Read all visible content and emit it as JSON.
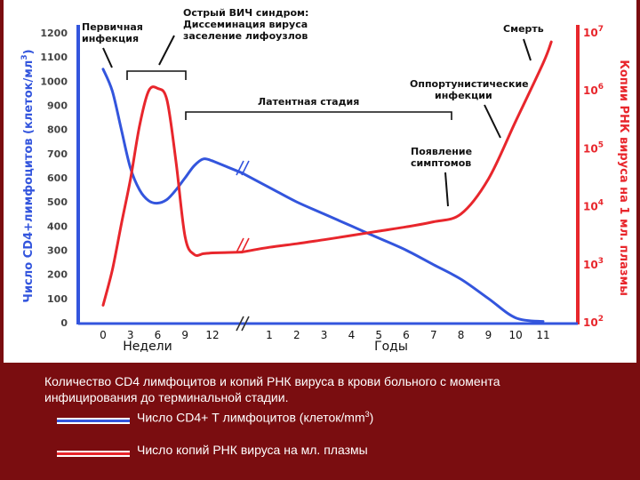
{
  "colors": {
    "cd4": "#3355dd",
    "rna": "#e8262c",
    "background": "#7a0d10",
    "annotation": "#111111"
  },
  "chart_data": {
    "type": "line",
    "left_axis": {
      "title": "Число CD4+лимфоцитов (клеток/мл",
      "title_sup": "3",
      "title_close": ")",
      "ticks": [
        0,
        100,
        200,
        300,
        400,
        500,
        600,
        700,
        800,
        900,
        1000,
        1100,
        1200
      ],
      "range": [
        0,
        1200
      ]
    },
    "right_axis": {
      "title": "Копии РНК вируса на 1 мл. плазмы",
      "scale": "log",
      "range": [
        100,
        10000000
      ],
      "ticks": [
        {
          "value": 100,
          "base": "10",
          "exp": "2"
        },
        {
          "value": 1000,
          "base": "10",
          "exp": "3"
        },
        {
          "value": 10000,
          "base": "10",
          "exp": "4"
        },
        {
          "value": 100000,
          "base": "10",
          "exp": "5"
        },
        {
          "value": 1000000,
          "base": "10",
          "exp": "6"
        },
        {
          "value": 10000000,
          "base": "10",
          "exp": "7"
        }
      ]
    },
    "x_axis": {
      "weeks_label": "Недели",
      "years_label": "Годы",
      "weeks_ticks": [
        0,
        3,
        6,
        9,
        12
      ],
      "years_ticks": [
        1,
        2,
        3,
        4,
        5,
        6,
        7,
        8,
        9,
        10,
        11
      ]
    },
    "series": [
      {
        "key": "cd4",
        "axis": "left",
        "weeks": [
          [
            0,
            1050
          ],
          [
            1,
            960
          ],
          [
            2,
            800
          ],
          [
            3,
            640
          ],
          [
            4,
            550
          ],
          [
            5,
            505
          ],
          [
            6,
            495
          ],
          [
            7,
            510
          ],
          [
            8,
            550
          ],
          [
            9,
            600
          ],
          [
            10,
            650
          ],
          [
            11,
            678
          ],
          [
            12,
            670
          ]
        ],
        "years": [
          [
            0,
            620
          ],
          [
            1,
            560
          ],
          [
            2,
            500
          ],
          [
            3,
            450
          ],
          [
            4,
            400
          ],
          [
            5,
            350
          ],
          [
            6,
            300
          ],
          [
            7,
            240
          ],
          [
            8,
            180
          ],
          [
            9,
            100
          ],
          [
            10,
            20
          ],
          [
            11,
            5
          ]
        ]
      },
      {
        "key": "rna",
        "axis": "right",
        "weeks": [
          [
            0,
            200
          ],
          [
            1,
            800
          ],
          [
            2,
            5000
          ],
          [
            3,
            30000
          ],
          [
            4,
            250000
          ],
          [
            5,
            1000000
          ],
          [
            6,
            1100000
          ],
          [
            7,
            700000
          ],
          [
            8,
            60000
          ],
          [
            9,
            3000
          ],
          [
            10,
            1500
          ],
          [
            11,
            1550
          ],
          [
            12,
            1600
          ]
        ],
        "years": [
          [
            0,
            1650
          ],
          [
            1,
            2000
          ],
          [
            2,
            2300
          ],
          [
            3,
            2700
          ],
          [
            4,
            3200
          ],
          [
            5,
            3800
          ],
          [
            6,
            4500
          ],
          [
            7,
            5500
          ],
          [
            8,
            7500
          ],
          [
            9,
            30000
          ],
          [
            10,
            300000
          ],
          [
            11,
            3000000
          ],
          [
            11.3,
            7000000
          ]
        ]
      }
    ],
    "annotations": [
      {
        "key": "primary",
        "lines": [
          "Первичная",
          "инфекция"
        ]
      },
      {
        "key": "acute",
        "lines": [
          "Острый ВИЧ синдром:",
          "Диссеминация вируса",
          "заселение лифоузлов"
        ]
      },
      {
        "key": "latent",
        "lines": [
          "Латентная стадия"
        ]
      },
      {
        "key": "opportunistic",
        "lines": [
          "Оппортунистические",
          "инфекции"
        ]
      },
      {
        "key": "symptoms",
        "lines": [
          "Появление",
          "симптомов"
        ]
      },
      {
        "key": "death",
        "lines": [
          "Смерть"
        ]
      }
    ]
  },
  "caption": {
    "line1": "Количество CD4 лимфоцитов и копий РНК вируса в крови больного с момента",
    "line2": "инфицирования до терминальной стадии."
  },
  "legend": {
    "cd4_label": "Число CD4+ Т лимфоцитов (клеток/mm",
    "cd4_sup": "3",
    "cd4_close": ")",
    "rna_label": "Число копий РНК вируса на мл. плазмы"
  }
}
